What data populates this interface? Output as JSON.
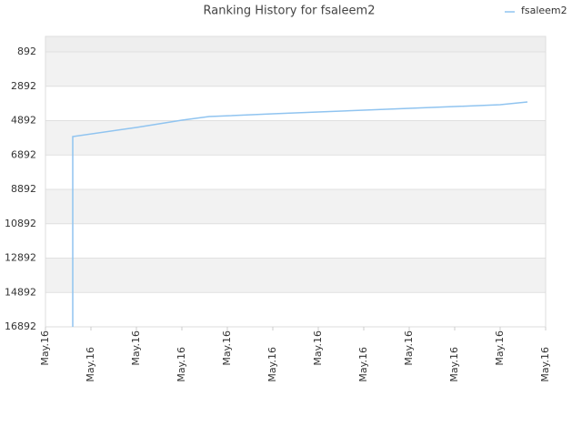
{
  "chart_data": {
    "type": "line",
    "title": "Ranking History for fsaleem2",
    "x": [
      0.6,
      0.6,
      2,
      3,
      3.6,
      5,
      6,
      7,
      8,
      9,
      10,
      10.6
    ],
    "series": [
      {
        "name": "fsaleem2",
        "color": "#90c4f0",
        "values": [
          16892,
          5819,
          5289,
          4866,
          4654,
          4495,
          4389,
          4283,
          4177,
          4071,
          3965,
          3806
        ]
      }
    ],
    "xlim": [
      0,
      11
    ],
    "xticks": [
      {
        "value": 0,
        "label": "May.16"
      },
      {
        "value": 1,
        "label": "May.16"
      },
      {
        "value": 2,
        "label": "May.16"
      },
      {
        "value": 3,
        "label": "May.16"
      },
      {
        "value": 4,
        "label": "May.16"
      },
      {
        "value": 5,
        "label": "May.16"
      },
      {
        "value": 6,
        "label": "May.16"
      },
      {
        "value": 7,
        "label": "May.16"
      },
      {
        "value": 8,
        "label": "May.16"
      },
      {
        "value": 9,
        "label": "May.16"
      },
      {
        "value": 10,
        "label": "May.16"
      },
      {
        "value": 11,
        "label": "May.16"
      }
    ],
    "ylim": [
      16892,
      -9
    ],
    "yticks": [
      892,
      2892,
      4892,
      6892,
      8892,
      10892,
      12892,
      14892,
      16892
    ],
    "grid": true,
    "legend": "top-right"
  }
}
